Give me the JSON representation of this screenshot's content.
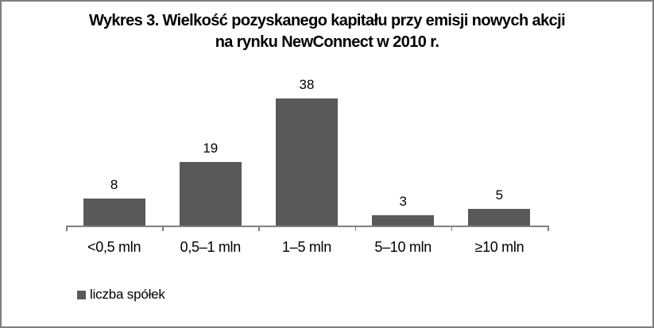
{
  "chart_data": {
    "type": "bar",
    "title": "Wykres 3. Wielkość pozyskanego kapitału przy emisji nowych akcji na rynku NewConnect w 2010 r.",
    "title_lines": [
      "Wykres 3. Wielkość pozyskanego kapitału przy emisji nowych akcji",
      "na rynku NewConnect w 2010 r."
    ],
    "categories": [
      "<0,5 mln",
      "0,5–1 mln",
      "1–5 mln",
      "5–10 mln",
      "≥10 mln"
    ],
    "values": [
      8,
      19,
      38,
      3,
      5
    ],
    "series_name": "liczba spółek",
    "legend": [
      "liczba spółek"
    ],
    "legend_position": "bottom-left",
    "data_labels": true,
    "grid": false,
    "xlabel": "",
    "ylabel": "",
    "ylim": [
      0,
      40
    ],
    "bar_color": "#595959",
    "axis_color": "#808080",
    "text_color": "#000000",
    "frame_border_color": "#7f7f7f"
  }
}
